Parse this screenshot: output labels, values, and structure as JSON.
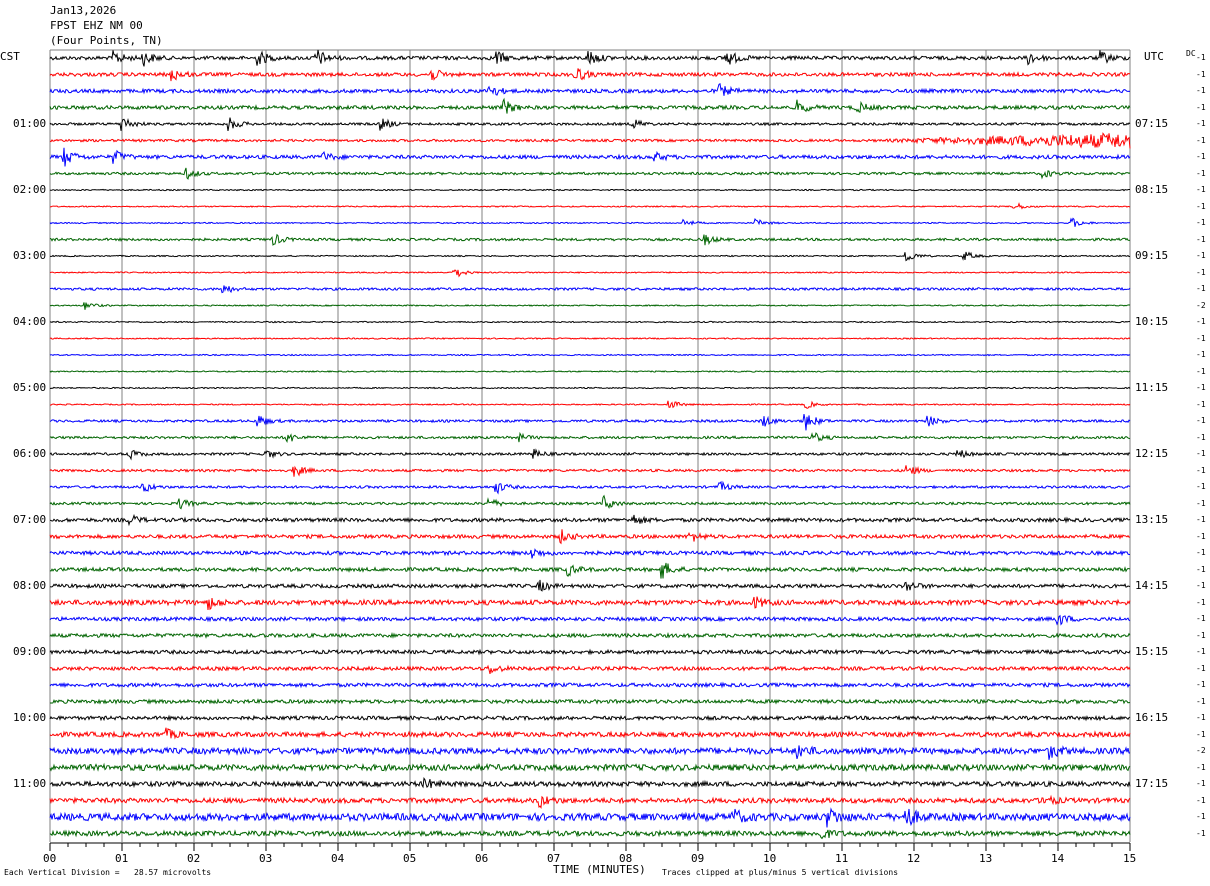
{
  "header": {
    "date": "Jan13,2026",
    "station": "FPST EHZ NM 00",
    "location": "(Four Points, TN)"
  },
  "left_zone": "CST",
  "right_zone": "UTC",
  "dc_label": "DC",
  "footer": {
    "scale_note": "Each Vertical Division =   28.57 microvolts",
    "xlabel": "TIME (MINUTES)",
    "clip_note": "Traces clipped at plus/minus 5 vertical divisions"
  },
  "colors": {
    "cycle": [
      "#000000",
      "#ff0000",
      "#0000ff",
      "#006400"
    ],
    "grid": "#808080"
  },
  "chart_data": {
    "type": "line",
    "title": "",
    "xlabel": "TIME (MINUTES)",
    "xlim": [
      0,
      15
    ],
    "x_ticks": [
      "00",
      "01",
      "02",
      "03",
      "04",
      "05",
      "06",
      "07",
      "08",
      "09",
      "10",
      "11",
      "12",
      "13",
      "14",
      "15"
    ],
    "rows": 48,
    "row_minutes": 15,
    "left_time_labels": [
      {
        "row": 4,
        "label": "01:00"
      },
      {
        "row": 8,
        "label": "02:00"
      },
      {
        "row": 12,
        "label": "03:00"
      },
      {
        "row": 16,
        "label": "04:00"
      },
      {
        "row": 20,
        "label": "05:00"
      },
      {
        "row": 24,
        "label": "06:00"
      },
      {
        "row": 28,
        "label": "07:00"
      },
      {
        "row": 32,
        "label": "08:00"
      },
      {
        "row": 36,
        "label": "09:00"
      },
      {
        "row": 40,
        "label": "10:00"
      },
      {
        "row": 44,
        "label": "11:00"
      }
    ],
    "right_time_labels": [
      {
        "row": 4,
        "label": "07:15"
      },
      {
        "row": 8,
        "label": "08:15"
      },
      {
        "row": 12,
        "label": "09:15"
      },
      {
        "row": 16,
        "label": "10:15"
      },
      {
        "row": 20,
        "label": "11:15"
      },
      {
        "row": 24,
        "label": "12:15"
      },
      {
        "row": 28,
        "label": "13:15"
      },
      {
        "row": 32,
        "label": "14:15"
      },
      {
        "row": 36,
        "label": "15:15"
      },
      {
        "row": 40,
        "label": "16:15"
      },
      {
        "row": 44,
        "label": "17:15"
      }
    ],
    "dc_offsets": [
      -1,
      -1,
      -1,
      -1,
      -1,
      -1,
      -1,
      -1,
      -1,
      -1,
      -1,
      -1,
      -1,
      -1,
      -1,
      -2,
      -1,
      -1,
      -1,
      -1,
      -1,
      -1,
      -1,
      -1,
      -1,
      -1,
      -1,
      -1,
      -1,
      -1,
      -1,
      -1,
      -1,
      -1,
      -1,
      -1,
      -1,
      -1,
      -1,
      -1,
      -1,
      -1,
      -2,
      -1,
      -1,
      -1,
      -1,
      -1
    ],
    "noise_level": [
      3,
      3,
      3,
      3,
      2,
      2,
      3,
      2,
      1,
      1,
      1,
      2,
      1,
      1,
      2,
      1,
      1,
      1,
      1,
      1,
      1,
      1,
      2,
      2,
      2,
      2,
      2,
      2,
      3,
      3,
      3,
      3,
      3,
      4,
      3,
      3,
      3,
      3,
      3,
      3,
      3,
      4,
      5,
      5,
      4,
      4,
      6,
      4
    ],
    "events": [
      {
        "row": 0,
        "t": 0.9,
        "a": 6
      },
      {
        "row": 0,
        "t": 1.3,
        "a": 7
      },
      {
        "row": 0,
        "t": 2.9,
        "a": 7
      },
      {
        "row": 0,
        "t": 3.7,
        "a": 9
      },
      {
        "row": 0,
        "t": 6.2,
        "a": 7
      },
      {
        "row": 0,
        "t": 7.5,
        "a": 7
      },
      {
        "row": 0,
        "t": 9.4,
        "a": 8
      },
      {
        "row": 0,
        "t": 13.6,
        "a": 6
      },
      {
        "row": 0,
        "t": 14.6,
        "a": 6
      },
      {
        "row": 1,
        "t": 1.7,
        "a": 6
      },
      {
        "row": 1,
        "t": 5.3,
        "a": 6
      },
      {
        "row": 1,
        "t": 7.3,
        "a": 8
      },
      {
        "row": 2,
        "t": 6.1,
        "a": 7
      },
      {
        "row": 2,
        "t": 9.3,
        "a": 6
      },
      {
        "row": 3,
        "t": 6.3,
        "a": 8
      },
      {
        "row": 3,
        "t": 10.4,
        "a": 6
      },
      {
        "row": 3,
        "t": 11.2,
        "a": 6
      },
      {
        "row": 4,
        "t": 1.0,
        "a": 8
      },
      {
        "row": 4,
        "t": 2.5,
        "a": 6
      },
      {
        "row": 4,
        "t": 4.6,
        "a": 6
      },
      {
        "row": 4,
        "t": 8.1,
        "a": 5
      },
      {
        "row": 6,
        "t": 0.2,
        "a": 9
      },
      {
        "row": 6,
        "t": 0.9,
        "a": 6
      },
      {
        "row": 6,
        "t": 3.8,
        "a": 4
      },
      {
        "row": 6,
        "t": 8.4,
        "a": 4
      },
      {
        "row": 7,
        "t": 1.9,
        "a": 5
      },
      {
        "row": 7,
        "t": 13.8,
        "a": 4
      },
      {
        "row": 9,
        "t": 13.4,
        "a": 4
      },
      {
        "row": 10,
        "t": 8.8,
        "a": 4
      },
      {
        "row": 10,
        "t": 9.8,
        "a": 4
      },
      {
        "row": 10,
        "t": 14.2,
        "a": 5
      },
      {
        "row": 11,
        "t": 3.1,
        "a": 6
      },
      {
        "row": 11,
        "t": 9.1,
        "a": 5
      },
      {
        "row": 12,
        "t": 11.9,
        "a": 6
      },
      {
        "row": 12,
        "t": 12.7,
        "a": 5
      },
      {
        "row": 13,
        "t": 5.6,
        "a": 7
      },
      {
        "row": 14,
        "t": 2.4,
        "a": 5
      },
      {
        "row": 15,
        "t": 0.5,
        "a": 4
      },
      {
        "row": 21,
        "t": 8.6,
        "a": 5
      },
      {
        "row": 21,
        "t": 10.5,
        "a": 4
      },
      {
        "row": 22,
        "t": 2.9,
        "a": 6
      },
      {
        "row": 22,
        "t": 9.9,
        "a": 6
      },
      {
        "row": 22,
        "t": 10.5,
        "a": 9
      },
      {
        "row": 22,
        "t": 12.2,
        "a": 5
      },
      {
        "row": 23,
        "t": 3.3,
        "a": 5
      },
      {
        "row": 23,
        "t": 6.5,
        "a": 4
      },
      {
        "row": 23,
        "t": 10.6,
        "a": 5
      },
      {
        "row": 24,
        "t": 1.1,
        "a": 5
      },
      {
        "row": 24,
        "t": 3.0,
        "a": 4
      },
      {
        "row": 24,
        "t": 6.7,
        "a": 5
      },
      {
        "row": 24,
        "t": 12.6,
        "a": 5
      },
      {
        "row": 25,
        "t": 3.4,
        "a": 6
      },
      {
        "row": 25,
        "t": 11.9,
        "a": 6
      },
      {
        "row": 26,
        "t": 1.3,
        "a": 5
      },
      {
        "row": 26,
        "t": 6.2,
        "a": 6
      },
      {
        "row": 26,
        "t": 9.3,
        "a": 5
      },
      {
        "row": 27,
        "t": 1.8,
        "a": 5
      },
      {
        "row": 27,
        "t": 7.7,
        "a": 7
      },
      {
        "row": 27,
        "t": 6.1,
        "a": 5
      },
      {
        "row": 28,
        "t": 1.1,
        "a": 5
      },
      {
        "row": 28,
        "t": 8.1,
        "a": 5
      },
      {
        "row": 29,
        "t": 7.1,
        "a": 6
      },
      {
        "row": 29,
        "t": 8.9,
        "a": 5
      },
      {
        "row": 30,
        "t": 6.7,
        "a": 5
      },
      {
        "row": 31,
        "t": 8.5,
        "a": 9
      },
      {
        "row": 31,
        "t": 7.2,
        "a": 5
      },
      {
        "row": 32,
        "t": 6.8,
        "a": 5
      },
      {
        "row": 32,
        "t": 11.9,
        "a": 5
      },
      {
        "row": 33,
        "t": 2.2,
        "a": 6
      },
      {
        "row": 33,
        "t": 9.8,
        "a": 5
      },
      {
        "row": 34,
        "t": 14.0,
        "a": 6
      },
      {
        "row": 37,
        "t": 6.1,
        "a": 5
      },
      {
        "row": 41,
        "t": 1.6,
        "a": 5
      },
      {
        "row": 42,
        "t": 10.4,
        "a": 6
      },
      {
        "row": 42,
        "t": 13.9,
        "a": 6
      },
      {
        "row": 44,
        "t": 5.2,
        "a": 5
      },
      {
        "row": 45,
        "t": 6.8,
        "a": 6
      },
      {
        "row": 45,
        "t": 13.8,
        "a": 5
      },
      {
        "row": 46,
        "t": 10.8,
        "a": 10
      },
      {
        "row": 46,
        "t": 11.9,
        "a": 9
      },
      {
        "row": 46,
        "t": 9.5,
        "a": 6
      },
      {
        "row": 47,
        "t": 10.7,
        "a": 6
      }
    ],
    "ramps": [
      {
        "row": 5,
        "from": 11.5,
        "to": 15,
        "a": 7
      }
    ],
    "grid": true
  }
}
